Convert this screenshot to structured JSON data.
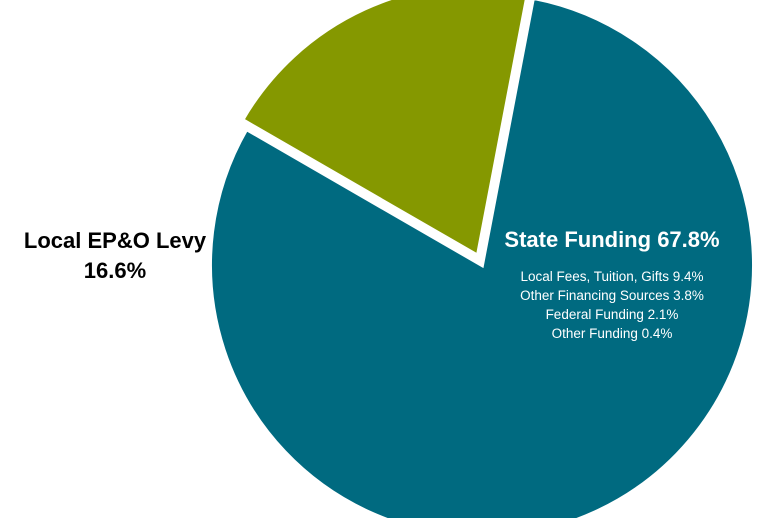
{
  "chart_data": {
    "type": "pie",
    "slices": [
      {
        "label": "State Funding",
        "value": 67.8,
        "value_text": "67.8%",
        "color": "#006a80",
        "label_color": "#ffffff"
      },
      {
        "label": "Local EP&O Levy",
        "value": 16.6,
        "value_text": "16.6%",
        "color": "#859800",
        "label_color": "#000000",
        "exploded": true
      }
    ],
    "sub_items": [
      {
        "label": "Local Fees, Tuition, Gifts",
        "value": 9.4,
        "value_text": "9.4%"
      },
      {
        "label": "Other Financing Sources",
        "value": 3.8,
        "value_text": "3.8%"
      },
      {
        "label": "Federal Funding",
        "value": 2.1,
        "value_text": "2.1%"
      },
      {
        "label": "Other Funding",
        "value": 0.4,
        "value_text": "0.4%"
      }
    ],
    "sub_items_grouped_with": "State Funding"
  }
}
